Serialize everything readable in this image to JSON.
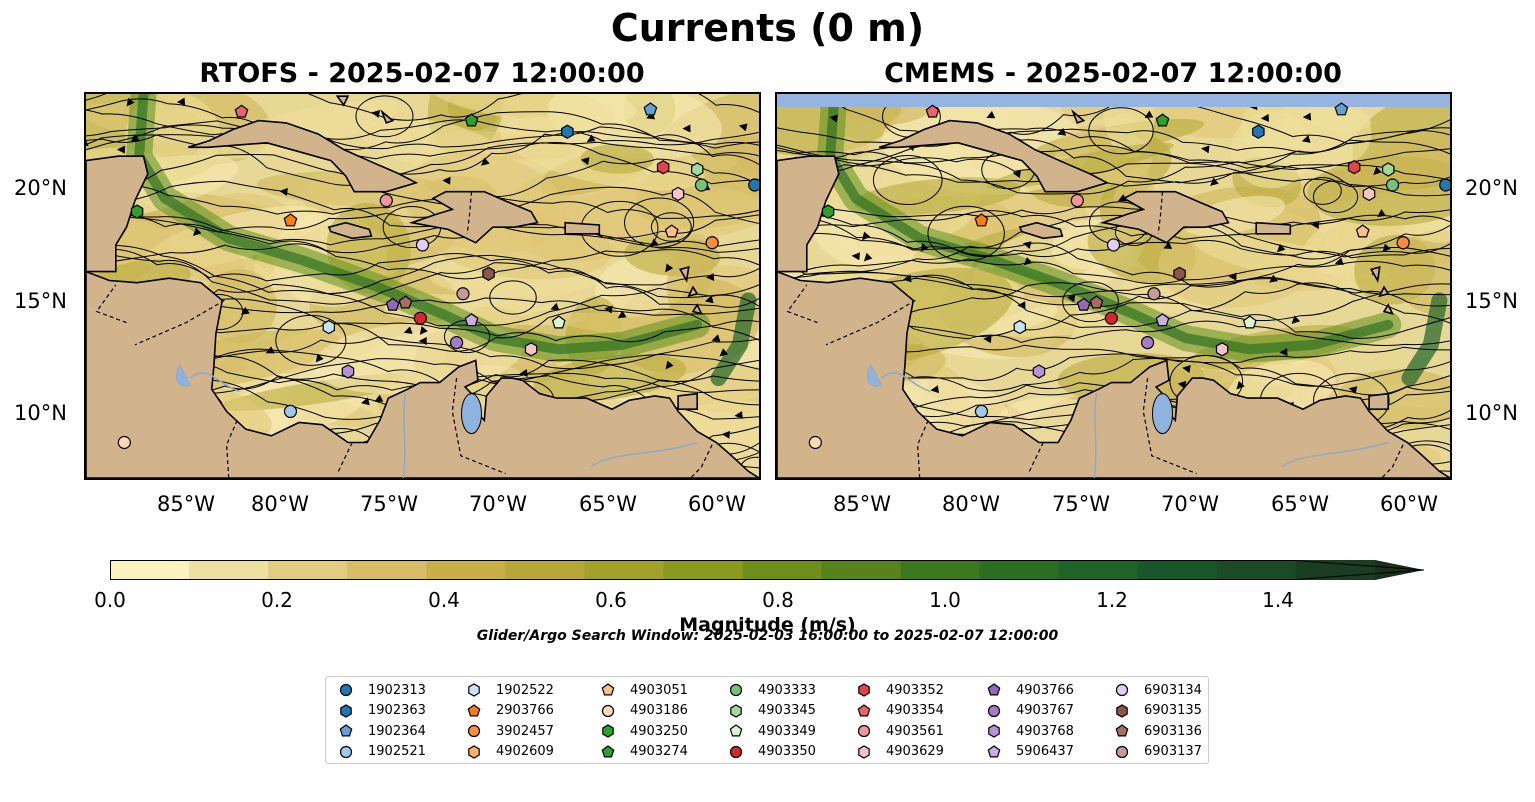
{
  "figure": {
    "suptitle": "Currents (0 m)",
    "panels": [
      {
        "title": "RTOFS - 2025-02-07 12:00:00"
      },
      {
        "title": "CMEMS - 2025-02-07 12:00:00"
      }
    ],
    "lat_labels": [
      "20°N",
      "15°N",
      "10°N"
    ],
    "lon_labels": [
      "85°W",
      "80°W",
      "75°W",
      "70°W",
      "65°W",
      "60°W"
    ],
    "colorbar": {
      "label": "Magnitude (m/s)",
      "ticks": [
        "0.0",
        "0.2",
        "0.4",
        "0.6",
        "0.8",
        "1.0",
        "1.2",
        "1.4"
      ],
      "colors": [
        "#faf3bf",
        "#eee0a0",
        "#e2cc82",
        "#d6bd66",
        "#c8b048",
        "#b6a836",
        "#a2a22a",
        "#8a9a1e",
        "#6f8f1a",
        "#56831b",
        "#3e781e",
        "#2b6d23",
        "#1e6328",
        "#195628",
        "#1a4a26",
        "#1b3d22",
        "#1b301c"
      ],
      "extend": "max"
    },
    "search_window": "Glider/Argo Search Window: 2025-02-03 16:00:00 to 2025-02-07 12:00:00",
    "land_color": "#d2b48c",
    "ocean_mask_color": "#95b5e0"
  },
  "legend": [
    {
      "id": "1902313",
      "color": "#1f77b4",
      "marker": "circle"
    },
    {
      "id": "1902363",
      "color": "#1f77b4",
      "marker": "hexagon"
    },
    {
      "id": "1902364",
      "color": "#5fa2d6",
      "marker": "pentagon"
    },
    {
      "id": "1902521",
      "color": "#9ecae9",
      "marker": "circle"
    },
    {
      "id": "1902522",
      "color": "#c6e2f6",
      "marker": "hexagon"
    },
    {
      "id": "2903766",
      "color": "#ff7f0e",
      "marker": "pentagon"
    },
    {
      "id": "3902457",
      "color": "#fd8d3c",
      "marker": "circle"
    },
    {
      "id": "4902609",
      "color": "#fdae6b",
      "marker": "hexagon"
    },
    {
      "id": "4903051",
      "color": "#fdbf8a",
      "marker": "pentagon"
    },
    {
      "id": "4903186",
      "color": "#fdd9b5",
      "marker": "circle"
    },
    {
      "id": "4903250",
      "color": "#2ca02c",
      "marker": "hexagon"
    },
    {
      "id": "4903274",
      "color": "#2ca02c",
      "marker": "pentagon"
    },
    {
      "id": "4903333",
      "color": "#74c476",
      "marker": "circle"
    },
    {
      "id": "4903345",
      "color": "#a1d99b",
      "marker": "hexagon"
    },
    {
      "id": "4903349",
      "color": "#d9f7cc",
      "marker": "pentagon"
    },
    {
      "id": "4903350",
      "color": "#d62728",
      "marker": "circle"
    },
    {
      "id": "4903352",
      "color": "#e0454a",
      "marker": "hexagon"
    },
    {
      "id": "4903354",
      "color": "#e8646a",
      "marker": "pentagon"
    },
    {
      "id": "4903561",
      "color": "#f0969a",
      "marker": "circle"
    },
    {
      "id": "4903629",
      "color": "#f7c3c6",
      "marker": "hexagon"
    },
    {
      "id": "4903766",
      "color": "#9467bd",
      "marker": "pentagon"
    },
    {
      "id": "4903767",
      "color": "#a47cc8",
      "marker": "circle"
    },
    {
      "id": "4903768",
      "color": "#b594d6",
      "marker": "hexagon"
    },
    {
      "id": "5906437",
      "color": "#c9aee5",
      "marker": "pentagon"
    },
    {
      "id": "6903134",
      "color": "#e2cdf5",
      "marker": "circle"
    },
    {
      "id": "6903135",
      "color": "#8c564b",
      "marker": "hexagon"
    },
    {
      "id": "6903136",
      "color": "#a66e5f",
      "marker": "pentagon"
    },
    {
      "id": "6903137",
      "color": "#c49c94",
      "marker": "circle"
    }
  ],
  "floats": [
    {
      "id": "4903354",
      "lon": -82.4,
      "lat": 23.5
    },
    {
      "id": "1902364",
      "lon": -63.2,
      "lat": 23.6
    },
    {
      "id": "4903274",
      "lon": -71.6,
      "lat": 23.1
    },
    {
      "id": "1902363",
      "lon": -67.1,
      "lat": 22.6
    },
    {
      "id": "4903352",
      "lon": -62.6,
      "lat": 21.0
    },
    {
      "id": "4903345",
      "lon": -61.0,
      "lat": 20.9
    },
    {
      "id": "4903629",
      "lon": -61.9,
      "lat": 19.8
    },
    {
      "id": "4903333",
      "lon": -60.8,
      "lat": 20.2
    },
    {
      "id": "1902313",
      "lon": -58.3,
      "lat": 20.2
    },
    {
      "id": "4903250",
      "lon": -87.3,
      "lat": 19.0
    },
    {
      "id": "2903766",
      "lon": -80.1,
      "lat": 18.6
    },
    {
      "id": "4903561",
      "lon": -75.6,
      "lat": 19.5
    },
    {
      "id": "4903051",
      "lon": -62.2,
      "lat": 18.1
    },
    {
      "id": "3902457",
      "lon": -60.3,
      "lat": 17.6
    },
    {
      "id": "6903134",
      "lon": -73.9,
      "lat": 17.5
    },
    {
      "id": "6903135",
      "lon": -70.8,
      "lat": 16.2
    },
    {
      "id": "6903137",
      "lon": -72.0,
      "lat": 15.3
    },
    {
      "id": "4903766",
      "lon": -75.3,
      "lat": 14.8
    },
    {
      "id": "6903136",
      "lon": -74.7,
      "lat": 14.9
    },
    {
      "id": "4903350",
      "lon": -74.0,
      "lat": 14.2
    },
    {
      "id": "5906437",
      "lon": -71.6,
      "lat": 14.1
    },
    {
      "id": "1902522",
      "lon": -78.3,
      "lat": 13.8
    },
    {
      "id": "4903349",
      "lon": -67.5,
      "lat": 14.0
    },
    {
      "id": "4903767",
      "lon": -72.3,
      "lat": 13.1
    },
    {
      "id": "4903629b",
      "lon": -68.8,
      "lat": 12.8
    },
    {
      "id": "4903768",
      "lon": -77.4,
      "lat": 11.8
    },
    {
      "id": "1902521",
      "lon": -80.1,
      "lat": 10.0
    },
    {
      "id": "4903186",
      "lon": -87.9,
      "lat": 8.6
    }
  ]
}
